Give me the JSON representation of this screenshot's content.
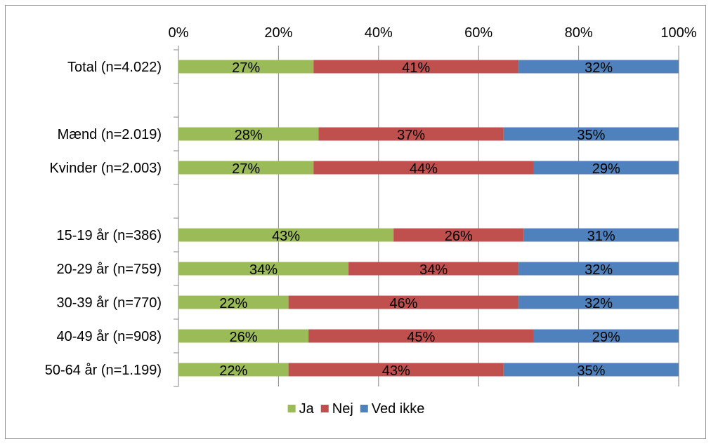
{
  "chart_data": {
    "type": "bar",
    "orientation": "horizontal",
    "stacked": true,
    "percent_stacked": true,
    "title": "",
    "xlabel": "",
    "ylabel": "",
    "xlim": [
      0,
      100
    ],
    "x_ticks": [
      "0%",
      "20%",
      "40%",
      "60%",
      "80%",
      "100%"
    ],
    "grid": true,
    "legend_position": "bottom",
    "rows": [
      {
        "label": "Total (n=4.022)",
        "values": [
          27,
          41,
          32
        ],
        "value_labels": [
          "27%",
          "41%",
          "32%"
        ]
      },
      {
        "label": "",
        "values": null,
        "value_labels": null
      },
      {
        "label": "Mænd (n=2.019)",
        "values": [
          28,
          37,
          35
        ],
        "value_labels": [
          "28%",
          "37%",
          "35%"
        ]
      },
      {
        "label": "Kvinder (n=2.003)",
        "values": [
          27,
          44,
          29
        ],
        "value_labels": [
          "27%",
          "44%",
          "29%"
        ]
      },
      {
        "label": "",
        "values": null,
        "value_labels": null
      },
      {
        "label": "15-19 år (n=386)",
        "values": [
          43,
          26,
          31
        ],
        "value_labels": [
          "43%",
          "26%",
          "31%"
        ]
      },
      {
        "label": "20-29 år (n=759)",
        "values": [
          34,
          34,
          32
        ],
        "value_labels": [
          "34%",
          "34%",
          "32%"
        ]
      },
      {
        "label": "30-39 år (n=770)",
        "values": [
          22,
          46,
          32
        ],
        "value_labels": [
          "22%",
          "46%",
          "32%"
        ]
      },
      {
        "label": "40-49 år (n=908)",
        "values": [
          26,
          45,
          29
        ],
        "value_labels": [
          "26%",
          "45%",
          "29%"
        ]
      },
      {
        "label": "50-64 år (n=1.199)",
        "values": [
          22,
          43,
          35
        ],
        "value_labels": [
          "22%",
          "43%",
          "35%"
        ]
      }
    ],
    "series": [
      {
        "name": "Ja",
        "color": "#9bbb59"
      },
      {
        "name": "Nej",
        "color": "#c0504d"
      },
      {
        "name": "Ved ikke",
        "color": "#4f81bd"
      }
    ],
    "colors": {
      "gridline": "#868686",
      "axis": "#868686",
      "frame": "#8c8c8c"
    }
  }
}
